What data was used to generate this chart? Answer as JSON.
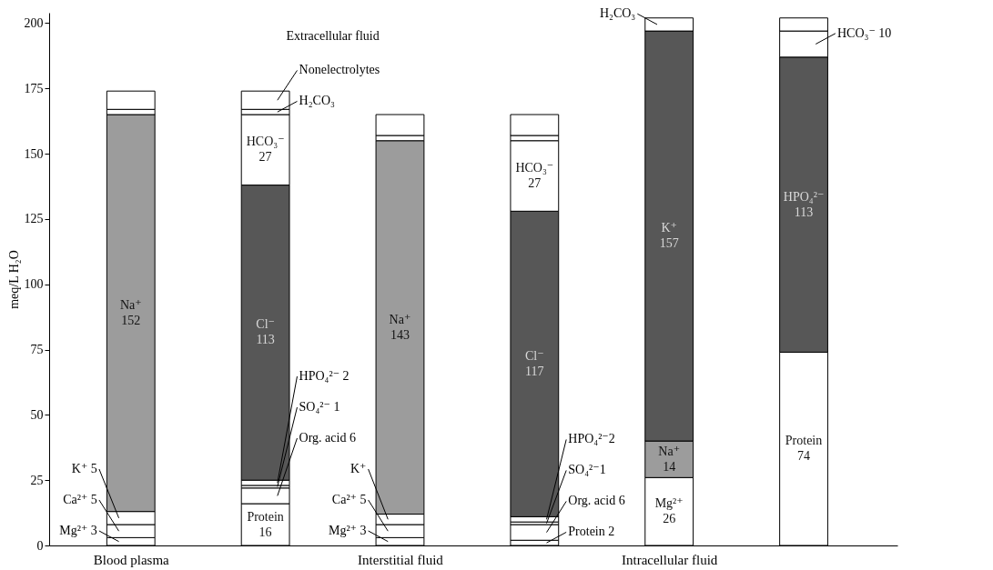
{
  "chart_data": {
    "type": "bar",
    "stacked": true,
    "ylabel": "meq/L H₂O",
    "ylim": [
      0,
      204
    ],
    "yticks": [
      0,
      25,
      50,
      75,
      100,
      125,
      150,
      175,
      200
    ],
    "categories": [
      "Blood plasma",
      null,
      "Interstitial fluid",
      null,
      "Intracellular fluid",
      null
    ],
    "annotations": [
      "Extracellular fluid"
    ],
    "series": [
      {
        "color": "#ffffff",
        "values": [
          3,
          null,
          3,
          null,
          26,
          null
        ],
        "value_labels": [
          "Mg²⁺ 3",
          null,
          "Mg²⁺ 3",
          null,
          "Mg²⁺\n26",
          null
        ]
      },
      {
        "color": "#ffffff",
        "values": [
          null,
          16,
          null,
          2,
          null,
          74
        ],
        "value_labels": [
          null,
          "Protein\n16",
          null,
          "Protein 2",
          null,
          "Protein\n74"
        ]
      },
      {
        "color": "#ffffff",
        "values": [
          5,
          null,
          5,
          null,
          null,
          null
        ],
        "value_labels": [
          "Ca²⁺ 5",
          null,
          "Ca²⁺ 5",
          null,
          null,
          null
        ]
      },
      {
        "color": "#ffffff",
        "values": [
          null,
          6,
          null,
          6,
          null,
          null
        ],
        "value_labels": [
          null,
          "Org. acid 6",
          null,
          "Org. acid 6",
          null,
          null
        ]
      },
      {
        "color": "#ffffff",
        "values": [
          5,
          null,
          4,
          null,
          null,
          null
        ],
        "value_labels": [
          "K⁺ 5",
          null,
          "K⁺",
          null,
          null,
          null
        ]
      },
      {
        "color": "#ffffff",
        "values": [
          null,
          1,
          null,
          1,
          null,
          null
        ],
        "value_labels": [
          null,
          "SO₄²⁻ 1",
          null,
          "SO₄²⁻1",
          null,
          null
        ]
      },
      {
        "color": "#9c9c9c",
        "values": [
          152,
          null,
          143,
          null,
          14,
          null
        ],
        "value_labels": [
          "Na⁺\n152",
          null,
          "Na⁺\n143",
          null,
          "Na⁺\n14",
          null
        ]
      },
      {
        "color": "#ffffff",
        "values": [
          null,
          2,
          null,
          2,
          null,
          null
        ],
        "value_labels": [
          null,
          "HPO₄²⁻ 2",
          null,
          "HPO₄²⁻2",
          null,
          null
        ]
      },
      {
        "color": "#575757",
        "values": [
          null,
          null,
          null,
          null,
          157,
          null
        ],
        "value_labels": [
          null,
          null,
          null,
          null,
          "K⁺\n157",
          null
        ]
      },
      {
        "color": "#575757",
        "values": [
          null,
          113,
          null,
          117,
          null,
          null
        ],
        "value_labels": [
          null,
          "Cl⁻\n113",
          null,
          "Cl⁻\n117",
          null,
          null
        ]
      },
      {
        "color": "#575757",
        "values": [
          null,
          null,
          null,
          null,
          null,
          113
        ],
        "value_labels": [
          null,
          null,
          null,
          null,
          null,
          "HPO₄²⁻\n113"
        ]
      },
      {
        "color": "#ffffff",
        "values": [
          null,
          27,
          null,
          27,
          null,
          10
        ],
        "value_labels": [
          null,
          "HCO₃⁻\n27",
          null,
          "HCO₃⁻\n27",
          null,
          "HCO₃⁻ 10"
        ]
      },
      {
        "color": "#ffffff",
        "values": [
          2,
          2,
          2,
          2,
          5,
          5
        ],
        "value_labels": [
          null,
          "H₂CO₃",
          null,
          null,
          "H₂CO₃",
          null
        ]
      },
      {
        "color": "#ffffff",
        "values": [
          7,
          7,
          8,
          8,
          null,
          null
        ],
        "value_labels": [
          null,
          "Nonelectrolytes",
          null,
          null,
          null,
          null
        ]
      }
    ]
  }
}
